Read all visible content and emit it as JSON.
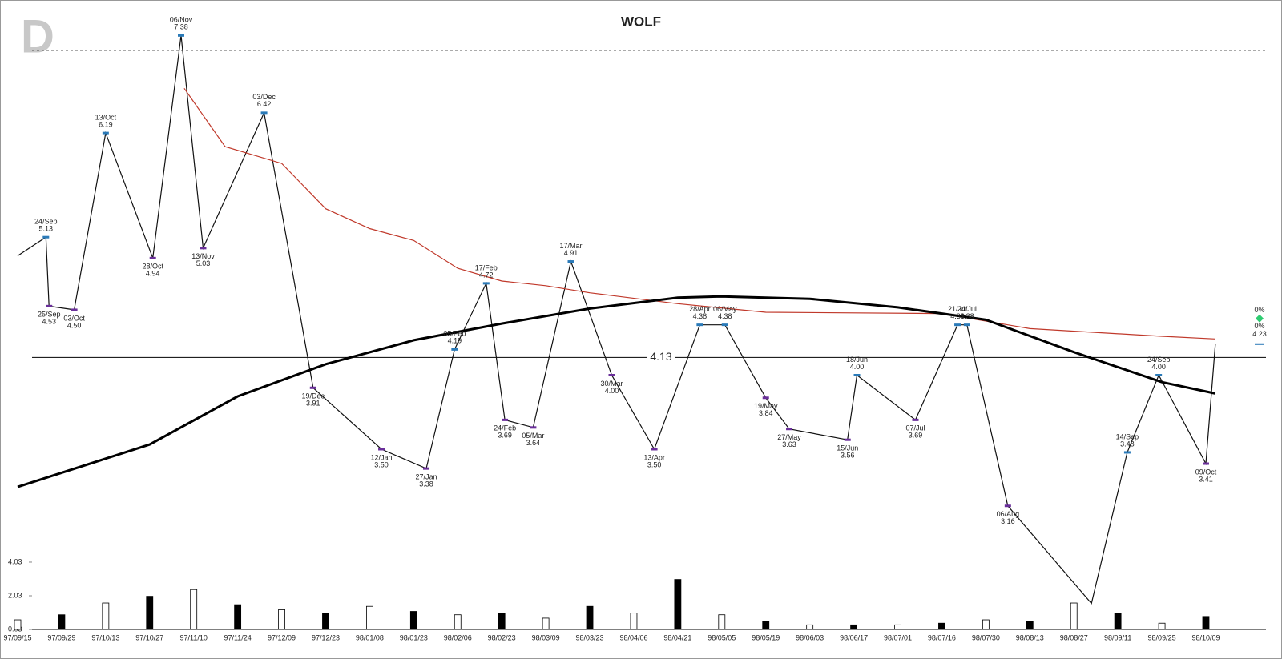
{
  "chart_data": {
    "type": "line",
    "title": "WOLF",
    "logo": "D",
    "log_scale": true,
    "ylim": [
      2.5,
      7.6
    ],
    "categories": [
      "97/09/15",
      "97/09/29",
      "97/10/13",
      "97/10/27",
      "97/11/10",
      "97/11/24",
      "97/12/09",
      "97/12/23",
      "98/01/08",
      "98/01/23",
      "98/02/06",
      "98/02/23",
      "98/03/09",
      "98/03/23",
      "98/04/06",
      "98/04/21",
      "98/05/05",
      "98/05/19",
      "98/06/03",
      "98/06/17",
      "98/07/01",
      "98/07/16",
      "98/07/30",
      "98/08/13",
      "98/08/27",
      "98/09/11",
      "98/09/25",
      "98/10/09"
    ],
    "hline": 4.13,
    "series": [
      {
        "color": "#111111",
        "width": 1.2,
        "x": [
          "97/09/15",
          "97/09/24",
          "97/09/25",
          "97/10/03",
          "97/10/13",
          "97/10/28",
          "97/11/06",
          "97/11/13",
          "97/12/03",
          "97/12/19",
          "98/01/12",
          "98/01/27",
          "98/02/05",
          "98/02/17",
          "98/02/24",
          "98/03/05",
          "98/03/17",
          "98/03/30",
          "98/04/13",
          "98/04/28",
          "98/05/06",
          "98/05/19",
          "98/05/27",
          "98/06/15",
          "98/06/18",
          "98/07/07",
          "98/07/21",
          "98/07/24",
          "98/08/06",
          "98/09/02",
          "98/09/14",
          "98/09/24",
          "98/10/09",
          "98/10/12"
        ],
        "values": [
          4.96,
          5.13,
          4.53,
          4.5,
          6.19,
          4.94,
          7.38,
          5.03,
          6.42,
          3.91,
          3.5,
          3.38,
          4.19,
          4.72,
          3.69,
          3.64,
          4.91,
          4.0,
          3.5,
          4.38,
          4.38,
          3.84,
          3.63,
          3.56,
          4.0,
          3.69,
          4.38,
          4.38,
          3.16,
          2.65,
          3.48,
          4.0,
          3.41,
          4.23
        ]
      },
      {
        "color": "#c0392b",
        "width": 1.2,
        "x": [
          "97/11/07",
          "97/11/20",
          "97/12/09",
          "97/12/23",
          "98/01/08",
          "98/01/23",
          "98/02/06",
          "98/02/23",
          "98/03/09",
          "98/03/23",
          "98/04/21",
          "98/05/19",
          "98/07/16",
          "98/08/13",
          "98/09/25",
          "98/10/12"
        ],
        "values": [
          6.71,
          6.04,
          5.86,
          5.4,
          5.21,
          5.1,
          4.85,
          4.74,
          4.7,
          4.64,
          4.55,
          4.48,
          4.47,
          4.35,
          4.29,
          4.27
        ]
      },
      {
        "color": "#000000",
        "width": 3,
        "x": [
          "97/09/15",
          "97/10/27",
          "97/11/24",
          "97/12/23",
          "98/01/23",
          "98/02/23",
          "98/03/23",
          "98/04/21",
          "98/05/05",
          "98/06/03",
          "98/07/01",
          "98/07/30",
          "98/08/27",
          "98/09/25",
          "98/10/12"
        ],
        "values": [
          3.27,
          3.53,
          3.85,
          4.08,
          4.26,
          4.39,
          4.51,
          4.6,
          4.61,
          4.59,
          4.52,
          4.42,
          4.17,
          3.95,
          3.87
        ]
      }
    ],
    "high_color": "#2a7ab8",
    "low_color": "#6a2f9a",
    "pivots": [
      {
        "x": "97/09/24",
        "label": "24/Sep",
        "value": 5.13,
        "kind": "high"
      },
      {
        "x": "97/09/25",
        "label": "25/Sep",
        "value": 4.53,
        "kind": "low"
      },
      {
        "x": "97/10/03",
        "label": "03/Oct",
        "value": 4.5,
        "value_label": "4.50",
        "kind": "low"
      },
      {
        "x": "97/10/13",
        "label": "13/Oct",
        "value": 6.19,
        "kind": "high"
      },
      {
        "x": "97/10/28",
        "label": "28/Oct",
        "value": 4.94,
        "kind": "low"
      },
      {
        "x": "97/11/06",
        "label": "06/Nov",
        "value": 7.38,
        "kind": "high"
      },
      {
        "x": "97/11/13",
        "label": "13/Nov",
        "value": 5.03,
        "kind": "low"
      },
      {
        "x": "97/12/03",
        "label": "03/Dec",
        "value": 6.42,
        "kind": "high"
      },
      {
        "x": "97/12/19",
        "label": "19/Dec",
        "value": 3.91,
        "kind": "low"
      },
      {
        "x": "98/01/12",
        "label": "12/Jan",
        "value": 3.5,
        "value_label": "3.50",
        "kind": "low"
      },
      {
        "x": "98/01/27",
        "label": "27/Jan",
        "value": 3.38,
        "kind": "low"
      },
      {
        "x": "98/02/05",
        "label": "05/Feb",
        "value": 4.19,
        "kind": "high"
      },
      {
        "x": "98/02/17",
        "label": "17/Feb",
        "value": 4.72,
        "kind": "high"
      },
      {
        "x": "98/02/24",
        "label": "24/Feb",
        "value": 3.69,
        "kind": "low"
      },
      {
        "x": "98/03/05",
        "label": "05/Mar",
        "value": 3.64,
        "kind": "low"
      },
      {
        "x": "98/03/17",
        "label": "17/Mar",
        "value": 4.91,
        "kind": "high"
      },
      {
        "x": "98/03/30",
        "label": "30/Mar",
        "value": 4.0,
        "value_label": "4.00",
        "kind": "low"
      },
      {
        "x": "98/04/13",
        "label": "13/Apr",
        "value": 3.5,
        "value_label": "3.50",
        "kind": "low"
      },
      {
        "x": "98/04/28",
        "label": "28/Apr",
        "value": 4.38,
        "kind": "high"
      },
      {
        "x": "98/05/06",
        "label": "06/May",
        "value": 4.38,
        "kind": "high"
      },
      {
        "x": "98/05/19",
        "label": "19/May",
        "value": 3.84,
        "kind": "low"
      },
      {
        "x": "98/05/27",
        "label": "27/May",
        "value": 3.63,
        "kind": "low"
      },
      {
        "x": "98/06/15",
        "label": "15/Jun",
        "value": 3.56,
        "kind": "low"
      },
      {
        "x": "98/06/18",
        "label": "18/Jun",
        "value": 4.0,
        "value_label": "4.00",
        "kind": "high"
      },
      {
        "x": "98/07/07",
        "label": "07/Jul",
        "value": 3.69,
        "kind": "low"
      },
      {
        "x": "98/07/21",
        "label": "21/Jul",
        "value": 4.38,
        "kind": "high"
      },
      {
        "x": "98/07/24",
        "label": "24/Jul",
        "value": 4.38,
        "kind": "high"
      },
      {
        "x": "98/08/06",
        "label": "06/Aug",
        "value": 3.16,
        "kind": "low"
      },
      {
        "x": "98/09/14",
        "label": "14/Sep",
        "value": 3.48,
        "kind": "high"
      },
      {
        "x": "98/09/24",
        "label": "24/Sep",
        "value": 4.0,
        "value_label": "4.00",
        "kind": "high"
      },
      {
        "x": "98/10/09",
        "label": "09/Oct",
        "value": 3.41,
        "kind": "low"
      }
    ],
    "last": {
      "value": 4.23,
      "labels": [
        "0%",
        "0%"
      ]
    },
    "volume": {
      "values": [
        0.6,
        0.9,
        1.6,
        2.0,
        2.4,
        1.5,
        1.2,
        1.0,
        1.4,
        1.1,
        0.9,
        1.0,
        0.7,
        1.4,
        1.0,
        3.0,
        0.9,
        0.5,
        0.3,
        0.3,
        0.3,
        0.4,
        0.6,
        0.5,
        1.6,
        1.0,
        0.4,
        0.8
      ],
      "ylim": [
        0.03,
        4.6
      ],
      "yticks": [
        0.03,
        2.03,
        4.03
      ]
    }
  }
}
